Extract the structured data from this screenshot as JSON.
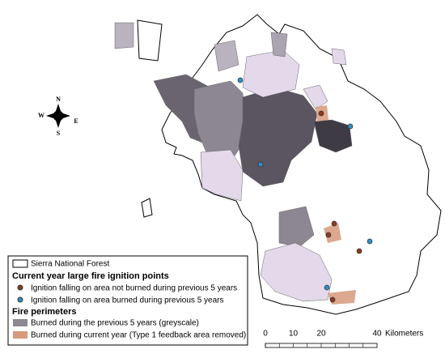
{
  "legend": {
    "boundary": "Sierra National Forest",
    "points_title": "Current year large fire ignition points",
    "points": [
      "Ignition falling on area not burned during previous 5 years",
      "Ignition falling on area burned during previous 5 years"
    ],
    "perimeters_title": "Fire perimeters",
    "perimeters": [
      "Burned during the previous 5 years (greyscale)",
      "Burned during current year (Type 1 feedback area removed)"
    ]
  },
  "compass": {
    "north": "N",
    "west": "W",
    "east": "E",
    "south": "S"
  },
  "scale_bar": {
    "labels": [
      0,
      10,
      20,
      40
    ],
    "unit": "Kilometers"
  }
}
